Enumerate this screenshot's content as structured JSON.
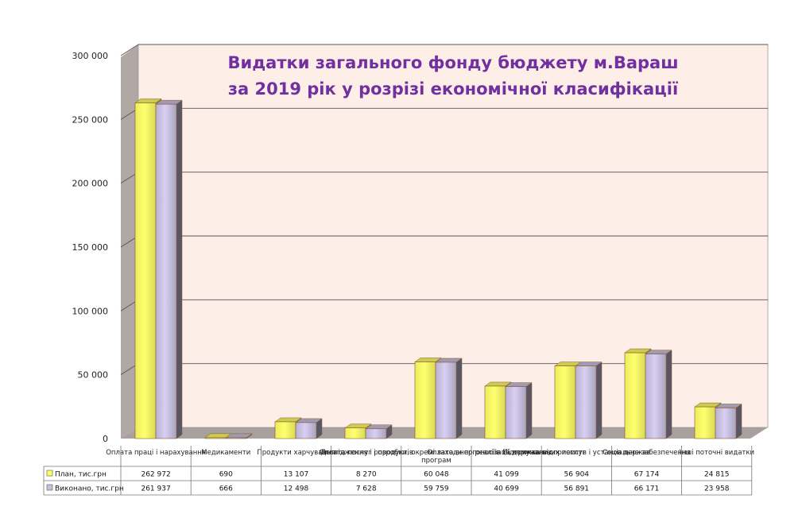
{
  "chart_data": {
    "type": "bar",
    "title_lines": [
      "Видатки загального фонду бюджету м.Вараш",
      "за 2019 рік у розрізі економічної класифікації"
    ],
    "categories": [
      "Оплата праці і нарахування",
      "Медикаменти",
      "Продукти харчування",
      "Оплата послуг і продуктів",
      "Дослідження і розробки, окремі заходи по реалізації державних програм",
      "Оплата енергоносіїв та комунальних послуг",
      "Підтримка підприємств і установ держав",
      "Соціальне забезпечення",
      "Інші поточні видатки"
    ],
    "category_label_lines": [
      [
        "Оплата праці і нарахування"
      ],
      [
        "Медикаменти"
      ],
      [
        "Продукти харчування"
      ],
      [
        "Оплата послуг і продуктів"
      ],
      [
        "Дослідження і розробки, окремі заходи по реалізації державних",
        "програм"
      ],
      [
        "Оплата енергоносіїв та комунальних послуг"
      ],
      [
        "Підтримка підприємств і установ держав"
      ],
      [
        "Соціальне забезпечення"
      ],
      [
        "Інші поточні видатки"
      ]
    ],
    "series": [
      {
        "name": "План, тис.грн",
        "values": [
          262972,
          690,
          13107,
          8270,
          60048,
          41099,
          56904,
          67174,
          24815
        ],
        "labels": [
          "262 972",
          "690",
          "13 107",
          "8 270",
          "60 048",
          "41 099",
          "56 904",
          "67 174",
          "24 815"
        ],
        "color": "#ffff66"
      },
      {
        "name": "Виконано, тис.грн",
        "values": [
          261937,
          666,
          12498,
          7628,
          59759,
          40699,
          56891,
          66171,
          23958
        ],
        "labels": [
          "261 937",
          "666",
          "12 498",
          "7 628",
          "59 759",
          "40 699",
          "56 891",
          "66 171",
          "23 958"
        ],
        "color": "#c8c0e0"
      }
    ],
    "ylim": [
      0,
      300000
    ],
    "yticks": [
      0,
      50000,
      100000,
      150000,
      200000,
      250000,
      300000
    ],
    "ytick_labels": [
      "0",
      "50 000",
      "100 000",
      "150 000",
      "200 000",
      "250 000",
      "300 000"
    ],
    "grid": true,
    "legend": "data-table-below",
    "colors": {
      "plot_background": "#fdeee8",
      "wall_side": "#b0a8a4",
      "gridline": "#555555",
      "title": "#7030a0"
    }
  }
}
